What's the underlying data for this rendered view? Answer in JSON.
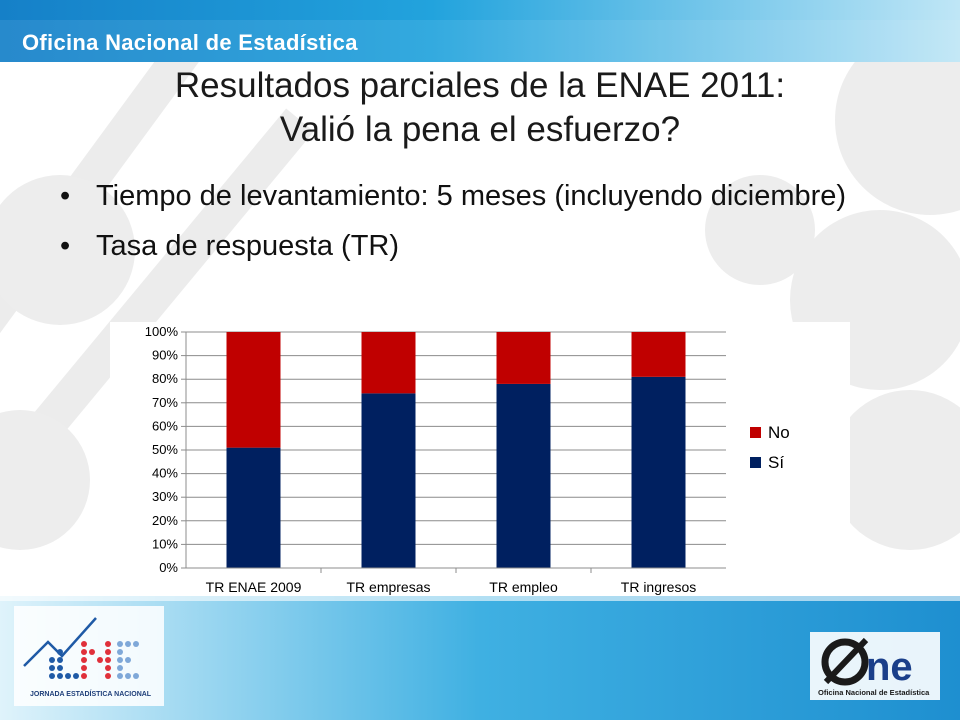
{
  "header": {
    "org_name": "Oficina Nacional de Estadística"
  },
  "title": {
    "line1": "Resultados parciales de la ENAE 2011:",
    "line2": "Valió la pena el esfuerzo?"
  },
  "bullets": [
    "Tiempo de levantamiento: 5 meses (incluyendo diciembre)",
    "Tasa de respuesta (TR)"
  ],
  "colors": {
    "header_band": "#1e9ad6",
    "footer_band": "#2aa4dc",
    "series_si": "#002060",
    "series_no": "#c00000"
  },
  "chart_data": {
    "type": "bar",
    "stacked": true,
    "categories": [
      "TR ENAE 2009",
      "TR empresas",
      "TR empleo",
      "TR ingresos"
    ],
    "series": [
      {
        "name": "Sí",
        "values": [
          51,
          74,
          78,
          81
        ],
        "color": "#002060"
      },
      {
        "name": "No",
        "values": [
          49,
          26,
          22,
          19
        ],
        "color": "#c00000"
      }
    ],
    "yticks": [
      "0%",
      "10%",
      "20%",
      "30%",
      "40%",
      "50%",
      "60%",
      "70%",
      "80%",
      "90%",
      "100%"
    ],
    "ylim": [
      0,
      100
    ],
    "grid": true,
    "legend": [
      "No",
      "Sí"
    ],
    "legend_position": "right"
  },
  "footer": {
    "left_logo_caption": "JORNADA ESTADÍSTICA NACIONAL",
    "right_logo_text": "ne",
    "right_logo_caption": "Oficina Nacional de Estadística"
  }
}
